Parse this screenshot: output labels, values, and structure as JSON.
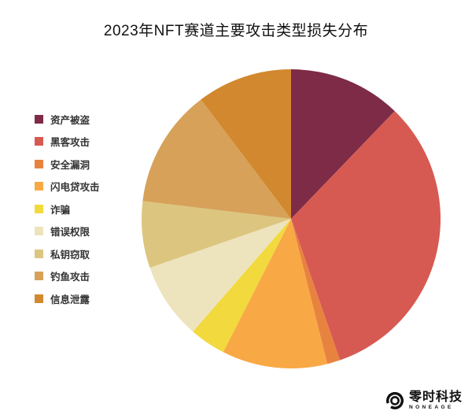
{
  "chart_data": {
    "type": "pie",
    "title": "2023年NFT赛道主要攻击类型损失分布",
    "legend_position": "left",
    "start_angle_deg": 0,
    "direction": "clockwise",
    "slices": [
      {
        "label": "资产被盗",
        "percent": 12.2,
        "color": "#7E2B47"
      },
      {
        "label": "黑客攻击",
        "percent": 32.5,
        "color": "#D65A52"
      },
      {
        "label": "安全漏洞",
        "percent": 1.4,
        "color": "#E8833F"
      },
      {
        "label": "闪电贷攻击",
        "percent": 11.4,
        "color": "#F8A945"
      },
      {
        "label": "诈骗",
        "percent": 3.9,
        "color": "#F2D93D"
      },
      {
        "label": "错误权限",
        "percent": 8.3,
        "color": "#EDE3BD"
      },
      {
        "label": "私钥窃取",
        "percent": 7.2,
        "color": "#DCC67F"
      },
      {
        "label": "钓鱼攻击",
        "percent": 12.8,
        "color": "#D7A159"
      },
      {
        "label": "信息泄露",
        "percent": 10.3,
        "color": "#D2882F"
      }
    ]
  },
  "branding": {
    "logo_text": "零时科技",
    "logo_subtext": "NONEAGE",
    "logo_color": "#111111"
  }
}
